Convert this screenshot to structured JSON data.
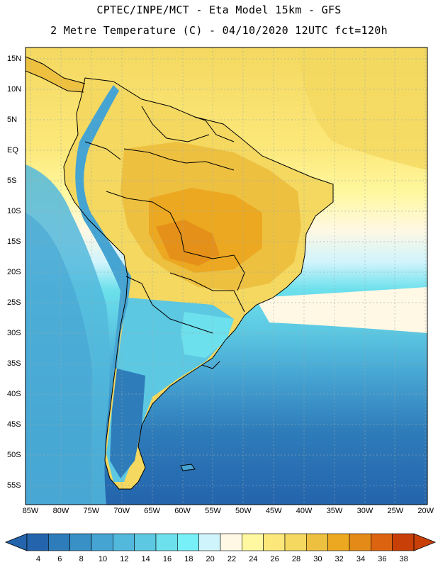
{
  "header": {
    "line1": "CPTEC/INPE/MCT -  Eta Model 15km - GFS",
    "line2": "2 Metre Temperature (C) - 04/10/2020 12UTC fct=120h"
  },
  "map": {
    "lat_labels": [
      "15N",
      "10N",
      "5N",
      "EQ",
      "5S",
      "10S",
      "15S",
      "20S",
      "25S",
      "30S",
      "35S",
      "40S",
      "45S",
      "50S",
      "55S"
    ],
    "lon_labels": [
      "85W",
      "80W",
      "75W",
      "70W",
      "65W",
      "60W",
      "55W",
      "50W",
      "45W",
      "40W",
      "35W",
      "30W",
      "25W",
      "20W"
    ]
  },
  "legend": {
    "labels": [
      "4",
      "6",
      "8",
      "10",
      "12",
      "14",
      "16",
      "18",
      "20",
      "22",
      "24",
      "26",
      "28",
      "30",
      "32",
      "34",
      "36",
      "38"
    ],
    "colors": [
      "#2464ac",
      "#2e7cba",
      "#3890c6",
      "#46a4d2",
      "#52b8dc",
      "#5cc8e2",
      "#6ce0ec",
      "#78f0f8",
      "#d0f4fc",
      "#fff8e4",
      "#fff8a0",
      "#fce87a",
      "#f4d860",
      "#eec040",
      "#eca820",
      "#e48a18",
      "#dc6410",
      "#c84008"
    ]
  }
}
